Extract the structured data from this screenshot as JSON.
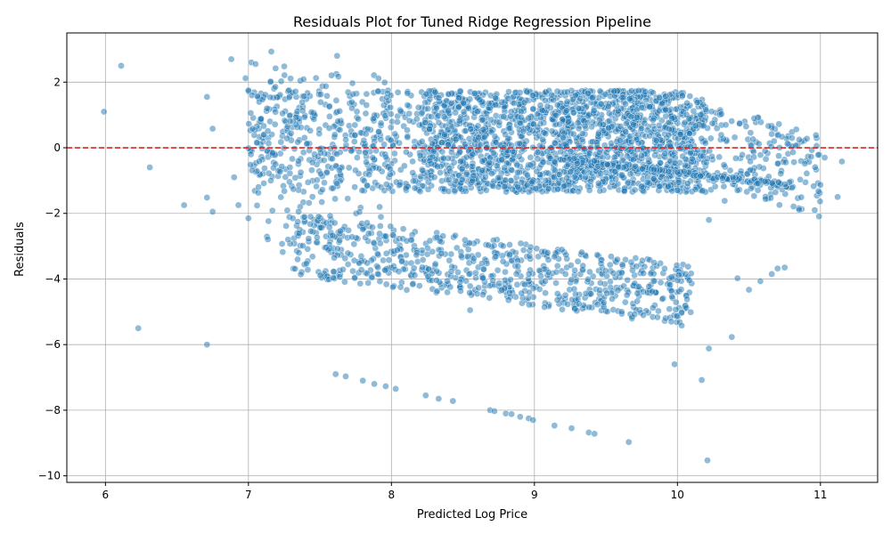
{
  "chart_data": {
    "type": "scatter",
    "title": "Residuals Plot for Tuned Ridge Regression Pipeline",
    "xlabel": "Predicted Log Price",
    "ylabel": "Residuals",
    "xlim": [
      5.73,
      11.4
    ],
    "ylim": [
      -10.2,
      3.5
    ],
    "xticks": [
      6,
      7,
      8,
      9,
      10,
      11
    ],
    "yticks": [
      -10,
      -8,
      -6,
      -4,
      -2,
      0,
      2
    ],
    "xtick_labels": [
      "6",
      "7",
      "8",
      "9",
      "10",
      "11"
    ],
    "ytick_labels": [
      "−10",
      "−8",
      "−6",
      "−4",
      "−2",
      "0",
      "2"
    ],
    "grid": true,
    "reference_line": {
      "y": 0,
      "color": "#d62728",
      "style": "dashed"
    },
    "point_color": "#1f77b4",
    "notable_points": [
      [
        5.99,
        1.1
      ],
      [
        6.11,
        2.5
      ],
      [
        6.31,
        -0.6
      ],
      [
        6.23,
        -5.5
      ],
      [
        6.55,
        -1.75
      ],
      [
        6.71,
        1.55
      ],
      [
        6.75,
        0.58
      ],
      [
        6.71,
        -1.52
      ],
      [
        6.75,
        -1.95
      ],
      [
        6.9,
        -0.9
      ],
      [
        6.88,
        2.7
      ],
      [
        6.93,
        -1.75
      ],
      [
        6.71,
        -6.0
      ],
      [
        6.98,
        2.12
      ],
      [
        7.0,
        1.75
      ],
      [
        7.02,
        2.6
      ],
      [
        7.05,
        2.55
      ],
      [
        7.0,
        -2.15
      ],
      [
        7.03,
        0.58
      ],
      [
        7.07,
        -1.2
      ],
      [
        7.13,
        1.2
      ],
      [
        7.16,
        2.93
      ],
      [
        7.19,
        2.42
      ],
      [
        7.25,
        2.48
      ],
      [
        7.24,
        -3.18
      ],
      [
        7.29,
        -0.6
      ],
      [
        7.62,
        2.8
      ],
      [
        7.61,
        -6.9
      ],
      [
        7.68,
        -6.97
      ],
      [
        7.8,
        -7.1
      ],
      [
        7.88,
        -7.2
      ],
      [
        7.96,
        -7.27
      ],
      [
        8.03,
        -7.35
      ],
      [
        8.24,
        -7.55
      ],
      [
        8.33,
        -7.65
      ],
      [
        8.43,
        -7.72
      ],
      [
        8.55,
        -4.95
      ],
      [
        8.69,
        -8.0
      ],
      [
        8.72,
        -8.03
      ],
      [
        8.8,
        -8.1
      ],
      [
        8.84,
        -8.12
      ],
      [
        8.9,
        -8.2
      ],
      [
        8.96,
        -8.25
      ],
      [
        8.99,
        -8.3
      ],
      [
        9.14,
        -8.47
      ],
      [
        9.26,
        -8.55
      ],
      [
        9.38,
        -8.68
      ],
      [
        9.42,
        -8.72
      ],
      [
        9.66,
        -8.97
      ],
      [
        9.61,
        -5.0
      ],
      [
        9.7,
        -5.08
      ],
      [
        9.98,
        -6.6
      ],
      [
        10.03,
        -5.42
      ],
      [
        10.17,
        -7.08
      ],
      [
        10.21,
        -9.53
      ],
      [
        10.22,
        -6.12
      ],
      [
        10.38,
        -5.77
      ],
      [
        10.22,
        -2.2
      ],
      [
        10.33,
        -1.62
      ],
      [
        10.42,
        -1.3
      ],
      [
        10.42,
        -3.98
      ],
      [
        10.5,
        -4.33
      ],
      [
        10.58,
        -4.07
      ],
      [
        10.66,
        -3.85
      ],
      [
        10.7,
        -3.68
      ],
      [
        10.75,
        -3.65
      ],
      [
        10.96,
        -1.9
      ],
      [
        11.0,
        -1.13
      ],
      [
        11.03,
        -0.3
      ],
      [
        11.12,
        -1.5
      ],
      [
        11.15,
        -0.42
      ]
    ]
  }
}
